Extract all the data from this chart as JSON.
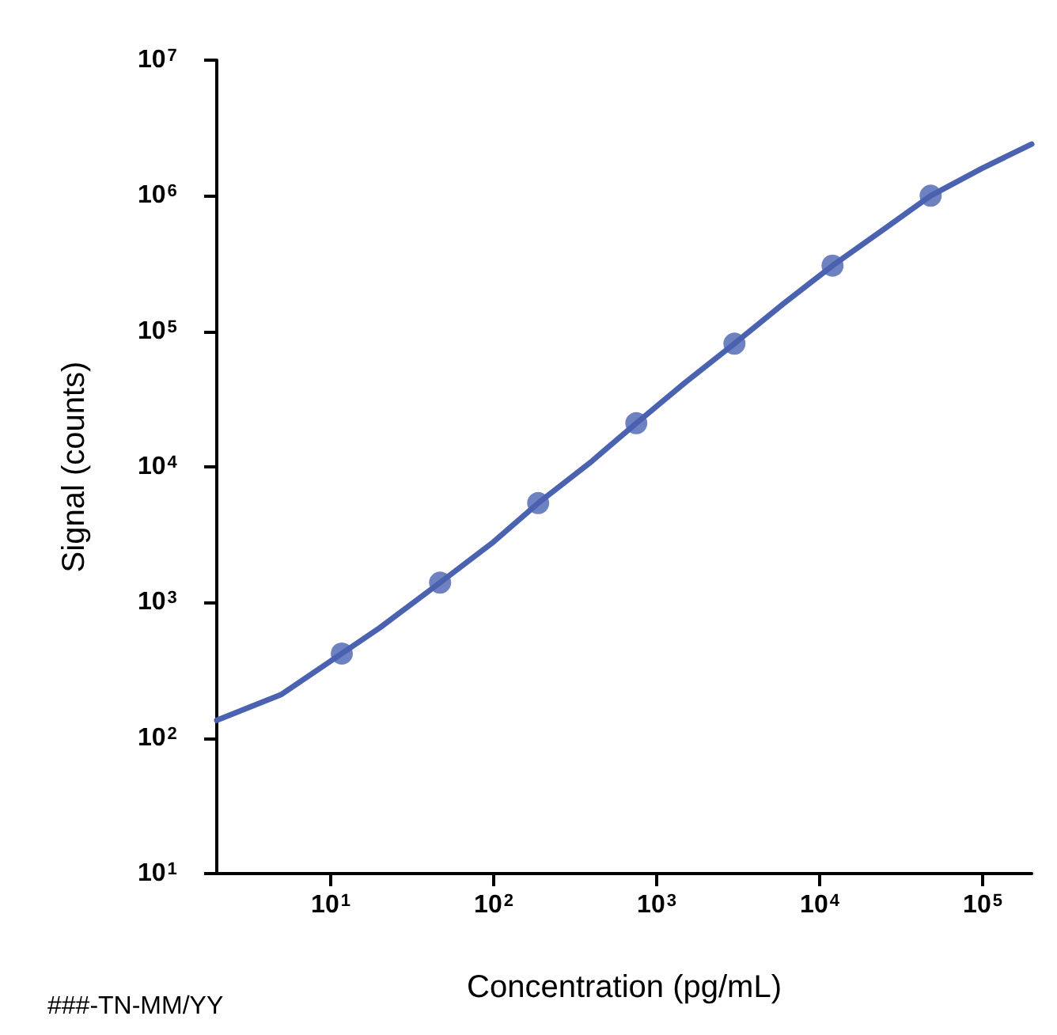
{
  "chart_data": {
    "type": "scatter",
    "xlabel": "Concentration (pg/mL)",
    "ylabel": "Signal (counts)",
    "annotations": [
      "###-TN-MM/YY"
    ],
    "log": "xy",
    "grid": false,
    "marker": "circle",
    "xlim": [
      2,
      200000
    ],
    "ylim": [
      10,
      10000000
    ],
    "xticks": [
      {
        "value": 10,
        "label": "10$^{1}$"
      },
      {
        "value": 100,
        "label": "10$^{2}$"
      },
      {
        "value": 1000,
        "label": "10$^{3}$"
      },
      {
        "value": 10000,
        "label": "10$^{4}$"
      },
      {
        "value": 100000,
        "label": "10$^{5}$"
      }
    ],
    "yticks": [
      {
        "value": 10,
        "label": "10$^{1}$"
      },
      {
        "value": 100,
        "label": "10$^{2}$"
      },
      {
        "value": 1000,
        "label": "10$^{3}$"
      },
      {
        "value": 10000,
        "label": "10$^{4}$"
      },
      {
        "value": 100000,
        "label": "10$^{5}$"
      },
      {
        "value": 1000000,
        "label": "10$^{6}$"
      },
      {
        "value": 10000000,
        "label": "10$^{7}$"
      }
    ],
    "series": [
      {
        "type": "line",
        "color": "#4a62b0",
        "marker": "none",
        "line_style": "solid",
        "x": [
          2,
          5,
          11.7,
          20,
          46.9,
          100,
          187.5,
          400,
          750,
          1500,
          3000,
          6000,
          12000,
          25000,
          48000,
          100000,
          200000
        ],
        "values": [
          135,
          210,
          420,
          650,
          1400,
          2800,
          5400,
          11000,
          21000,
          42000,
          81000,
          160000,
          305000,
          570000,
          1000000,
          1600000,
          2400000
        ]
      },
      {
        "color": "#4a62b0",
        "x": [
          11.7,
          46.9,
          187.5,
          750,
          3000,
          12000,
          48000
        ],
        "values": [
          420,
          1400,
          5400,
          21000,
          81000,
          305000,
          1000000
        ]
      }
    ]
  }
}
